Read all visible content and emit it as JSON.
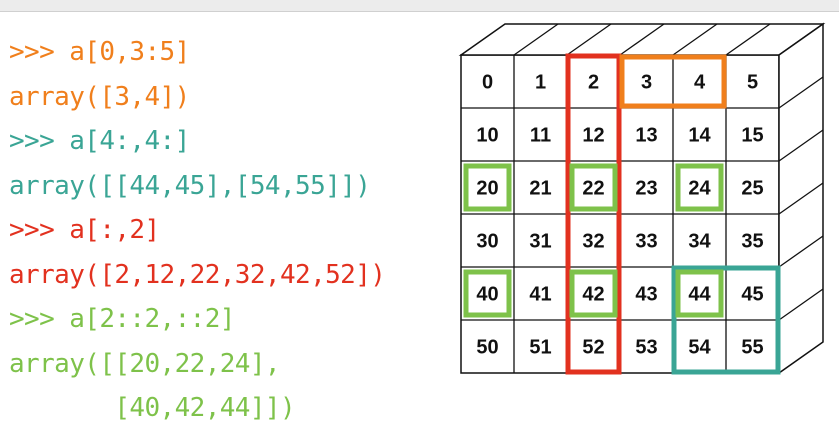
{
  "code_lines": [
    {
      "text": ">>> a[0,3:5]",
      "color": "#f07f1c"
    },
    {
      "text": "array([3,4])",
      "color": "#f07f1c"
    },
    {
      "text": ">>> a[4:,4:]",
      "color": "#3aa595"
    },
    {
      "text": "array([[44,45],[54,55]])",
      "color": "#3aa595"
    },
    {
      "text": ">>> a[:,2]",
      "color": "#e2311f"
    },
    {
      "text": "array([2,12,22,32,42,52])",
      "color": "#e2311f"
    },
    {
      "text": ">>> a[2::2,::2]",
      "color": "#7ec24a"
    },
    {
      "text": "array([[20,22,24],",
      "color": "#7ec24a"
    },
    {
      "text": "       [40,42,44]])",
      "color": "#7ec24a"
    }
  ],
  "grid": {
    "rows": [
      [
        "0",
        "1",
        "2",
        "3",
        "4",
        "5"
      ],
      [
        "10",
        "11",
        "12",
        "13",
        "14",
        "15"
      ],
      [
        "20",
        "21",
        "22",
        "23",
        "24",
        "25"
      ],
      [
        "30",
        "31",
        "32",
        "33",
        "34",
        "35"
      ],
      [
        "40",
        "41",
        "42",
        "43",
        "44",
        "45"
      ],
      [
        "50",
        "51",
        "52",
        "53",
        "54",
        "55"
      ]
    ]
  },
  "highlights": {
    "orange": {
      "color": "#f07f1c",
      "rows": [
        0,
        0
      ],
      "cols": [
        3,
        4
      ]
    },
    "red": {
      "color": "#e2311f",
      "rows": [
        0,
        5
      ],
      "cols": [
        2,
        2
      ]
    },
    "teal": {
      "color": "#3aa595",
      "rows": [
        4,
        5
      ],
      "cols": [
        4,
        5
      ]
    },
    "green": {
      "color": "#7ec24a",
      "cells": [
        [
          2,
          0
        ],
        [
          2,
          2
        ],
        [
          2,
          4
        ],
        [
          4,
          0
        ],
        [
          4,
          2
        ],
        [
          4,
          4
        ]
      ]
    }
  }
}
